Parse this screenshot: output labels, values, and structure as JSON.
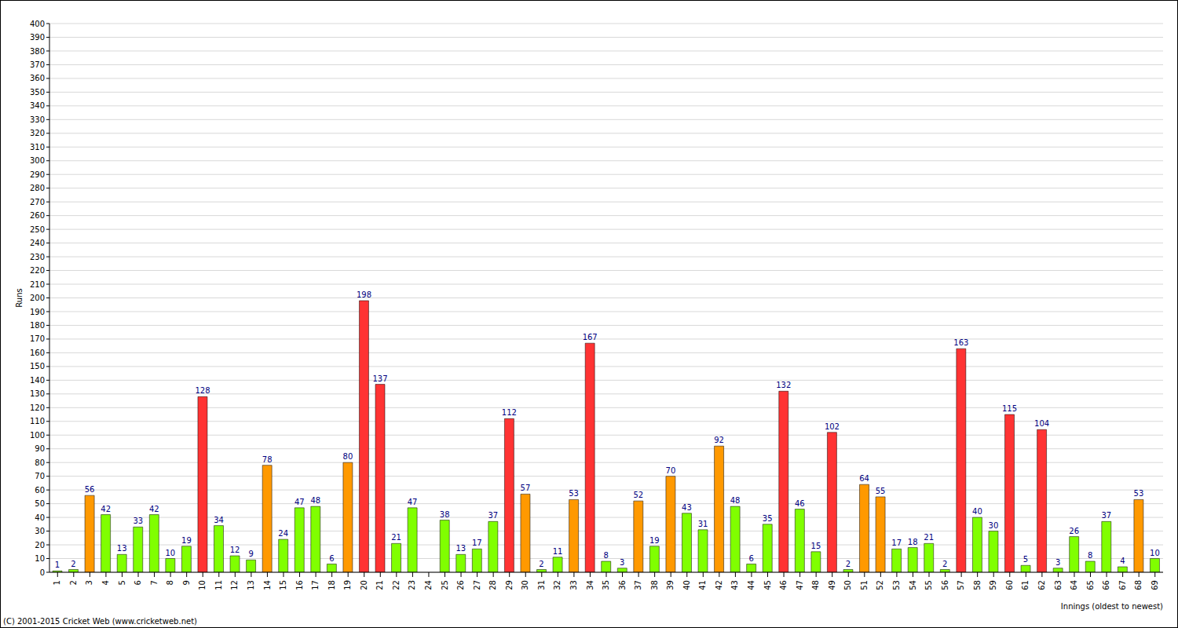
{
  "chart_data": {
    "type": "bar",
    "categories": [
      "1",
      "2",
      "3",
      "4",
      "5",
      "6",
      "7",
      "8",
      "9",
      "10",
      "11",
      "12",
      "13",
      "14",
      "15",
      "16",
      "17",
      "18",
      "19",
      "20",
      "21",
      "22",
      "23",
      "24",
      "25",
      "26",
      "27",
      "28",
      "29",
      "30",
      "31",
      "32",
      "33",
      "34",
      "35",
      "36",
      "37",
      "38",
      "39",
      "40",
      "41",
      "42",
      "43",
      "44",
      "45",
      "46",
      "47",
      "48",
      "49",
      "50",
      "51",
      "52",
      "53",
      "54",
      "55",
      "56",
      "57",
      "58",
      "59",
      "60",
      "61",
      "62",
      "63",
      "64",
      "65",
      "66",
      "67",
      "68",
      "69"
    ],
    "values": [
      1,
      2,
      56,
      42,
      13,
      33,
      42,
      10,
      19,
      128,
      34,
      12,
      9,
      78,
      24,
      47,
      48,
      6,
      80,
      198,
      137,
      21,
      47,
      0,
      38,
      13,
      17,
      37,
      112,
      57,
      2,
      11,
      53,
      167,
      8,
      3,
      52,
      19,
      70,
      43,
      31,
      92,
      48,
      6,
      35,
      132,
      46,
      15,
      102,
      2,
      64,
      55,
      17,
      18,
      21,
      2,
      163,
      40,
      30,
      115,
      5,
      104,
      3,
      26,
      8,
      37,
      4,
      53,
      10
    ],
    "colors": [
      "#80ff00",
      "#80ff00",
      "#ff9900",
      "#80ff00",
      "#80ff00",
      "#80ff00",
      "#80ff00",
      "#80ff00",
      "#80ff00",
      "#ff3333",
      "#80ff00",
      "#80ff00",
      "#80ff00",
      "#ff9900",
      "#80ff00",
      "#80ff00",
      "#80ff00",
      "#80ff00",
      "#ff9900",
      "#ff3333",
      "#ff3333",
      "#80ff00",
      "#80ff00",
      "#80ff00",
      "#80ff00",
      "#80ff00",
      "#80ff00",
      "#80ff00",
      "#ff3333",
      "#ff9900",
      "#80ff00",
      "#80ff00",
      "#ff9900",
      "#ff3333",
      "#80ff00",
      "#80ff00",
      "#ff9900",
      "#80ff00",
      "#ff9900",
      "#80ff00",
      "#80ff00",
      "#ff9900",
      "#80ff00",
      "#80ff00",
      "#80ff00",
      "#ff3333",
      "#80ff00",
      "#80ff00",
      "#ff3333",
      "#80ff00",
      "#ff9900",
      "#ff9900",
      "#80ff00",
      "#80ff00",
      "#80ff00",
      "#80ff00",
      "#ff3333",
      "#80ff00",
      "#80ff00",
      "#ff3333",
      "#80ff00",
      "#ff3333",
      "#80ff00",
      "#80ff00",
      "#80ff00",
      "#80ff00",
      "#80ff00",
      "#ff9900",
      "#80ff00"
    ],
    "x_label": "Innings (oldest to newest)",
    "y_label": "Runs",
    "annotations": [
      "(C) 2001-2015 Cricket Web (www.cricketweb.net)"
    ],
    "ylim": [
      0,
      400
    ],
    "yticks": [
      0,
      10,
      20,
      30,
      40,
      50,
      60,
      70,
      80,
      90,
      100,
      110,
      120,
      130,
      140,
      150,
      160,
      170,
      180,
      190,
      200,
      210,
      220,
      230,
      240,
      250,
      260,
      270,
      280,
      290,
      300,
      310,
      320,
      330,
      340,
      350,
      360,
      370,
      380,
      390,
      400
    ],
    "grid": true,
    "data_labels": true
  }
}
